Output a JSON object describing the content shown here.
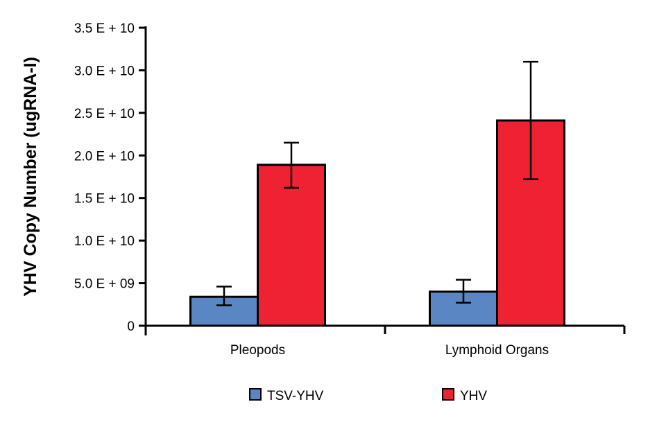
{
  "chart_data": {
    "type": "bar",
    "title": "",
    "xlabel": "",
    "ylabel": "YHV Copy Number (ugRNA-I)",
    "ylim": [
      0,
      35000000000
    ],
    "yticks": [
      0,
      5000000000,
      10000000000,
      15000000000,
      20000000000,
      25000000000,
      30000000000,
      35000000000
    ],
    "ytick_labels": [
      "0",
      "5.0 E + 09",
      "1.0 E + 10",
      "1.5 E + 10",
      "2.0 E + 10",
      "2.5 E + 10",
      "3.0 E + 10",
      "3.5 E + 10"
    ],
    "categories": [
      "Pleopods",
      "Lymphoid Organs"
    ],
    "series": [
      {
        "name": "TSV-YHV",
        "color": "#5b86c4",
        "values": [
          3400000000,
          4000000000
        ],
        "error_low": [
          2400000000,
          2700000000
        ],
        "error_high": [
          4600000000,
          5400000000
        ]
      },
      {
        "name": "YHV",
        "color": "#ee2233",
        "values": [
          18900000000,
          24100000000
        ],
        "error_low": [
          16200000000,
          17200000000
        ],
        "error_high": [
          21500000000,
          31000000000
        ]
      }
    ],
    "grid": false,
    "legend_position": "bottom"
  }
}
